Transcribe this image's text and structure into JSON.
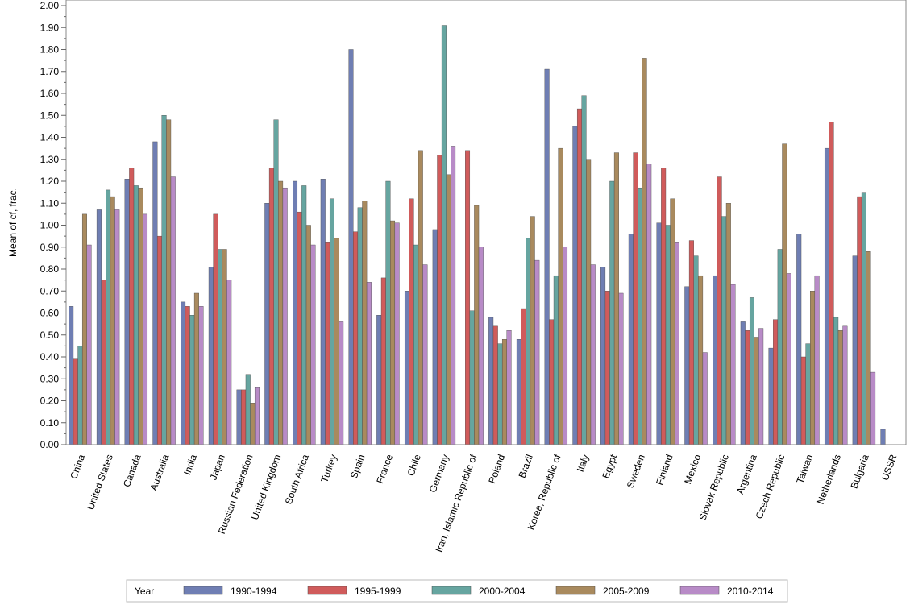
{
  "chart_data": {
    "type": "bar",
    "title": "",
    "xlabel": "",
    "ylabel": "Mean of cf, frac.",
    "ylim": [
      0,
      2.0
    ],
    "yticks": [
      "0.00",
      "0.10",
      "0.20",
      "0.30",
      "0.40",
      "0.50",
      "0.60",
      "0.70",
      "0.80",
      "0.90",
      "1.00",
      "1.10",
      "1.20",
      "1.30",
      "1.40",
      "1.50",
      "1.60",
      "1.70",
      "1.80",
      "1.90",
      "2.00"
    ],
    "legend_title": "Year",
    "legend_position": "bottom",
    "categories": [
      "China",
      "United States",
      "Canada",
      "Australia",
      "India",
      "Japan",
      "Russian Federation",
      "United Kingdom",
      "South Africa",
      "Turkey",
      "Spain",
      "France",
      "Chile",
      "Germany",
      "Iran, Islamic Republic of",
      "Poland",
      "Brazil",
      "Korea, Republic of",
      "Italy",
      "Egypt",
      "Sweden",
      "Finland",
      "Mexico",
      "Slovak Republic",
      "Argentina",
      "Czech Republic",
      "Taiwan",
      "Netherlands",
      "Bulgaria",
      "USSR"
    ],
    "series": [
      {
        "name": "1990-1994",
        "color": "#6f7eb3",
        "values": [
          0.63,
          1.07,
          1.21,
          1.38,
          0.65,
          0.81,
          0.25,
          1.1,
          1.2,
          1.21,
          1.8,
          0.59,
          0.7,
          0.98,
          null,
          0.58,
          0.48,
          1.71,
          1.45,
          0.81,
          0.96,
          1.01,
          0.72,
          0.77,
          0.56,
          0.44,
          0.96,
          1.35,
          0.86,
          0.07
        ]
      },
      {
        "name": "1995-1999",
        "color": "#d05b5b",
        "values": [
          0.39,
          0.75,
          1.26,
          0.95,
          0.63,
          1.05,
          0.25,
          1.26,
          1.06,
          0.92,
          0.97,
          0.76,
          1.12,
          1.32,
          1.34,
          0.54,
          0.62,
          0.57,
          1.53,
          0.7,
          1.33,
          1.26,
          0.93,
          1.22,
          0.52,
          0.57,
          0.4,
          1.47,
          1.13,
          null
        ]
      },
      {
        "name": "2000-2004",
        "color": "#66a5a0",
        "values": [
          0.45,
          1.16,
          1.18,
          1.5,
          0.59,
          0.89,
          0.32,
          1.48,
          1.18,
          1.12,
          1.08,
          1.2,
          0.91,
          1.91,
          0.61,
          0.46,
          0.94,
          0.77,
          1.59,
          1.2,
          1.17,
          1.0,
          0.86,
          1.04,
          0.67,
          0.89,
          0.46,
          0.58,
          1.15,
          null
        ]
      },
      {
        "name": "2005-2009",
        "color": "#a98a5e",
        "values": [
          1.05,
          1.13,
          1.17,
          1.48,
          0.69,
          0.89,
          0.19,
          1.2,
          1.0,
          0.94,
          1.11,
          1.02,
          1.34,
          1.23,
          1.09,
          0.48,
          1.04,
          1.35,
          1.3,
          1.33,
          1.76,
          1.12,
          0.77,
          1.1,
          0.49,
          1.37,
          0.7,
          0.52,
          0.88,
          null
        ]
      },
      {
        "name": "2010-2014",
        "color": "#b88bc7",
        "values": [
          0.91,
          1.07,
          1.05,
          1.22,
          0.63,
          0.75,
          0.26,
          1.17,
          0.91,
          0.56,
          0.74,
          1.01,
          0.82,
          1.36,
          0.9,
          0.52,
          0.84,
          0.9,
          0.82,
          0.69,
          1.28,
          0.92,
          0.42,
          0.73,
          0.53,
          0.78,
          0.77,
          0.54,
          0.33,
          null
        ]
      }
    ]
  }
}
